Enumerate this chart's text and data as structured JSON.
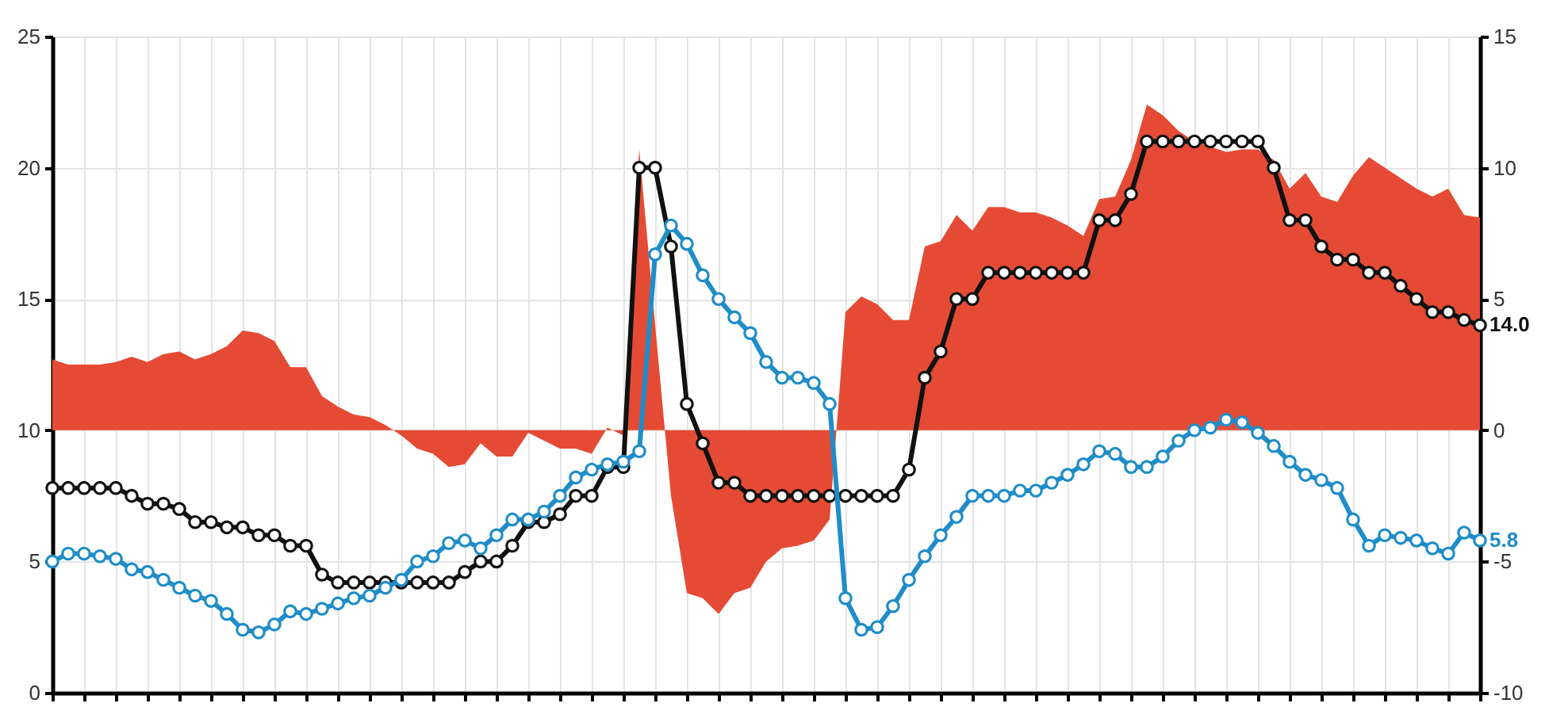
{
  "chart_data": {
    "type": "line",
    "categories": [
      null,
      null,
      null,
      null,
      null,
      null,
      null,
      null,
      null,
      null,
      null,
      null,
      null,
      null,
      null,
      null,
      null,
      null,
      null,
      null,
      null,
      null,
      null,
      null,
      null,
      null,
      null,
      null,
      null,
      null,
      null,
      null,
      null,
      null,
      null,
      null,
      null,
      null,
      null,
      null,
      null,
      null,
      null,
      null,
      null,
      null,
      null,
      null,
      null,
      null,
      null,
      null,
      null,
      null,
      null,
      null,
      null,
      null,
      null,
      null,
      null,
      null,
      null,
      null,
      null,
      null,
      null,
      null,
      null,
      null,
      null,
      null,
      null,
      null,
      null,
      null,
      null,
      null,
      null,
      null,
      null,
      null,
      null,
      null,
      null,
      null,
      null,
      null,
      null,
      null,
      null
    ],
    "series": [
      {
        "type": "area",
        "axis": "y2",
        "color": "#e54b34",
        "values": [
          2.7,
          2.5,
          2.5,
          2.5,
          2.6,
          2.8,
          2.6,
          2.9,
          3.0,
          2.7,
          2.9,
          3.2,
          3.8,
          3.7,
          3.4,
          2.4,
          2.4,
          1.3,
          0.9,
          0.6,
          0.5,
          0.2,
          -0.2,
          -0.7,
          -0.9,
          -1.4,
          -1.3,
          -0.5,
          -1.0,
          -1.0,
          -0.1,
          -0.4,
          -0.7,
          -0.7,
          -0.9,
          0.1,
          -0.2,
          10.7,
          4.0,
          -2.5,
          -6.2,
          -6.4,
          -7.0,
          -6.2,
          -6.0,
          -5.0,
          -4.5,
          -4.4,
          -4.2,
          -3.4,
          4.5,
          5.1,
          4.8,
          4.2,
          4.2,
          7.0,
          7.2,
          8.2,
          7.6,
          8.5,
          8.5,
          8.3,
          8.3,
          8.1,
          7.8,
          7.4,
          8.8,
          8.9,
          10.3,
          12.4,
          12.0,
          11.4,
          11.0,
          10.8,
          10.6,
          10.7,
          10.7,
          10.3,
          9.2,
          9.8,
          8.9,
          8.7,
          9.7,
          10.4,
          10.0,
          9.6,
          9.2,
          8.9,
          9.2,
          8.2,
          8.1
        ]
      },
      {
        "color": "#111111",
        "marker": "circle",
        "values": [
          7.8,
          7.8,
          7.8,
          7.8,
          7.8,
          7.5,
          7.2,
          7.2,
          7.0,
          6.5,
          6.5,
          6.3,
          6.3,
          6.0,
          6.0,
          5.6,
          5.6,
          4.5,
          4.2,
          4.2,
          4.2,
          4.2,
          4.2,
          4.2,
          4.2,
          4.2,
          4.6,
          5.0,
          5.0,
          5.6,
          6.5,
          6.5,
          6.8,
          7.5,
          7.5,
          8.6,
          8.6,
          20.0,
          20.0,
          17.0,
          11.0,
          9.5,
          8.0,
          8.0,
          7.5,
          7.5,
          7.5,
          7.5,
          7.5,
          7.5,
          7.5,
          7.5,
          7.5,
          7.5,
          8.5,
          12.0,
          13.0,
          15.0,
          15.0,
          16.0,
          16.0,
          16.0,
          16.0,
          16.0,
          16.0,
          16.0,
          18.0,
          18.0,
          19.0,
          21.0,
          21.0,
          21.0,
          21.0,
          21.0,
          21.0,
          21.0,
          21.0,
          20.0,
          18.0,
          18.0,
          17.0,
          16.5,
          16.5,
          16.0,
          16.0,
          15.5,
          15.0,
          14.5,
          14.5,
          14.2,
          14.0
        ],
        "value_labels": [
          null,
          null,
          null,
          null,
          null,
          null,
          null,
          null,
          null,
          null,
          null,
          null,
          null,
          null,
          null,
          null,
          null,
          null,
          null,
          null,
          null,
          null,
          null,
          null,
          null,
          null,
          null,
          null,
          null,
          null,
          null,
          null,
          null,
          null,
          null,
          null,
          null,
          null,
          null,
          null,
          null,
          null,
          null,
          null,
          null,
          null,
          null,
          null,
          null,
          null,
          null,
          null,
          null,
          null,
          null,
          null,
          null,
          null,
          null,
          null,
          null,
          null,
          null,
          null,
          null,
          null,
          null,
          null,
          null,
          null,
          null,
          null,
          null,
          null,
          null,
          null,
          null,
          null,
          null,
          null,
          null,
          null,
          null,
          null,
          null,
          null,
          null,
          null,
          null,
          null,
          "14.0"
        ]
      },
      {
        "color": "#1f8dc9",
        "marker": "circle",
        "values": [
          5.0,
          5.3,
          5.3,
          5.2,
          5.1,
          4.7,
          4.6,
          4.3,
          4.0,
          3.7,
          3.5,
          3.0,
          2.4,
          2.3,
          2.6,
          3.1,
          3.0,
          3.2,
          3.4,
          3.6,
          3.7,
          4.0,
          4.3,
          5.0,
          5.2,
          5.7,
          5.8,
          5.5,
          6.0,
          6.6,
          6.6,
          6.9,
          7.5,
          8.2,
          8.5,
          8.7,
          8.8,
          9.2,
          16.7,
          17.8,
          17.1,
          15.9,
          15.0,
          14.3,
          13.7,
          12.6,
          12.0,
          12.0,
          11.8,
          11.0,
          3.6,
          2.4,
          2.5,
          3.3,
          4.3,
          5.2,
          6.0,
          6.7,
          7.5,
          7.5,
          7.5,
          7.7,
          7.7,
          8.0,
          8.3,
          8.7,
          9.2,
          9.1,
          8.6,
          8.6,
          9.0,
          9.6,
          10.0,
          10.1,
          10.4,
          10.3,
          9.9,
          9.4,
          8.8,
          8.3,
          8.1,
          7.8,
          6.6,
          5.6,
          6.0,
          5.9,
          5.8,
          5.5,
          5.3,
          6.1,
          5.8
        ],
        "value_labels": [
          null,
          null,
          null,
          null,
          null,
          null,
          null,
          null,
          null,
          null,
          null,
          null,
          null,
          null,
          null,
          null,
          null,
          null,
          null,
          null,
          null,
          null,
          null,
          null,
          null,
          null,
          null,
          null,
          null,
          null,
          null,
          null,
          null,
          null,
          null,
          null,
          null,
          null,
          null,
          null,
          null,
          null,
          null,
          null,
          null,
          null,
          null,
          null,
          null,
          null,
          null,
          null,
          null,
          null,
          null,
          null,
          null,
          null,
          null,
          null,
          null,
          null,
          null,
          null,
          null,
          null,
          null,
          null,
          null,
          null,
          null,
          null,
          null,
          null,
          null,
          null,
          null,
          null,
          null,
          null,
          null,
          null,
          null,
          null,
          null,
          null,
          null,
          null,
          null,
          null,
          "5.8"
        ]
      }
    ],
    "ylim": [
      0,
      25
    ],
    "yticks": [
      0,
      5,
      10,
      15,
      20,
      25
    ],
    "y2lim": [
      -10,
      15
    ],
    "y2ticks": [
      -10,
      -5,
      0,
      5,
      10,
      15
    ],
    "grid": true
  }
}
